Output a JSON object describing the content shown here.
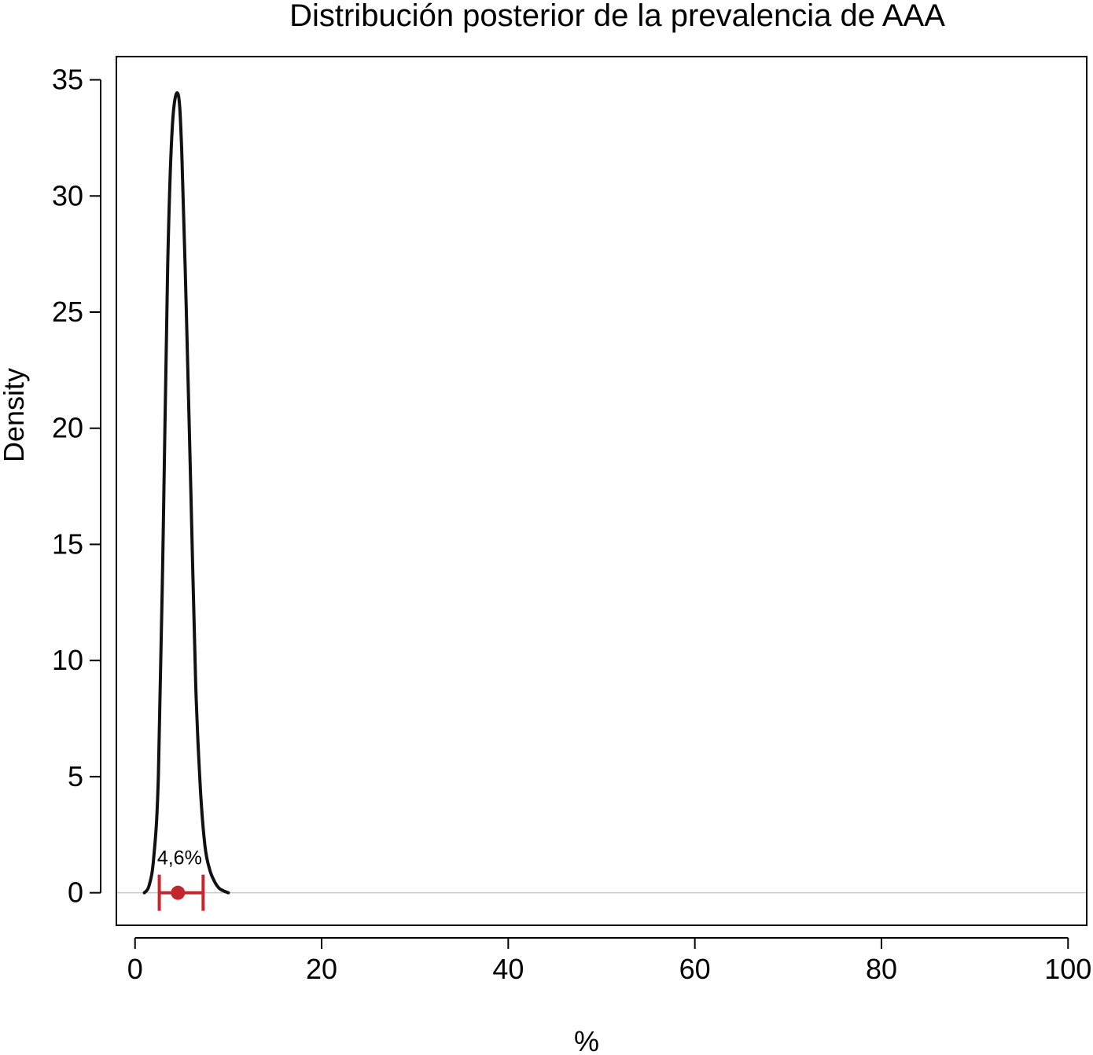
{
  "chart_data": {
    "type": "line",
    "title": "Distribución posterior de la prevalencia de AAA",
    "xlabel": "%",
    "ylabel": "Density",
    "xlim": [
      -2,
      102
    ],
    "ylim": [
      -1.4,
      36
    ],
    "xticks": [
      0,
      20,
      40,
      60,
      80,
      100
    ],
    "yticks": [
      0,
      5,
      10,
      15,
      20,
      25,
      30,
      35
    ],
    "grid": false,
    "legend": "none",
    "reference_line": {
      "y": 0,
      "color": "#c8c8c8"
    },
    "series": [
      {
        "color": "#111111",
        "x": [
          1.0,
          1.5,
          2.0,
          2.5,
          3.0,
          3.5,
          4.0,
          4.6,
          5.0,
          5.5,
          6.0,
          6.5,
          7.0,
          7.5,
          8.0,
          8.5,
          9.0,
          9.5,
          10.0
        ],
        "y": [
          0.0,
          0.3,
          1.5,
          5.0,
          15.0,
          27.0,
          33.0,
          34.4,
          32.0,
          25.0,
          17.0,
          9.0,
          4.5,
          2.0,
          1.0,
          0.5,
          0.2,
          0.08,
          0.0
        ]
      }
    ],
    "interval": {
      "point": 4.6,
      "lower": 2.6,
      "upper": 7.3,
      "label": "4,6%",
      "color": "#c0282d"
    }
  }
}
